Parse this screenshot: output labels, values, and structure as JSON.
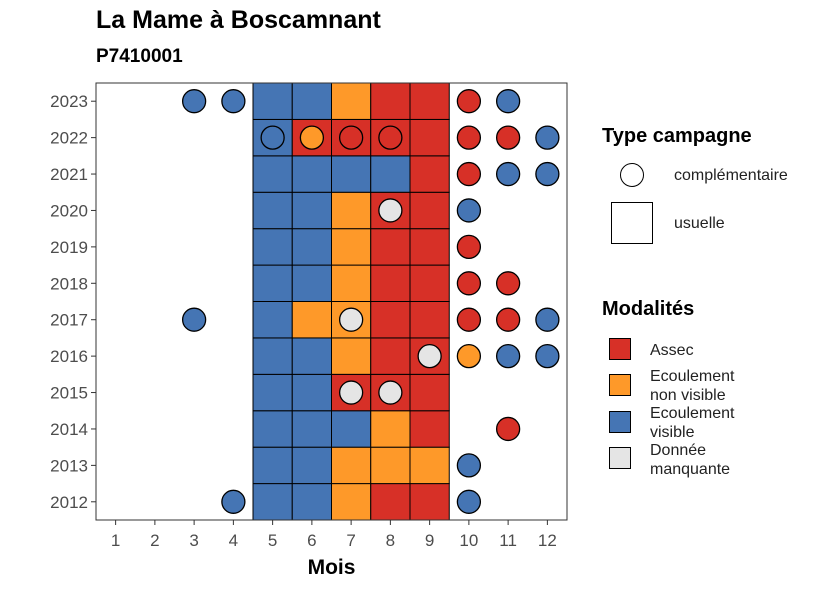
{
  "header": {
    "title": "La Mame à Boscamnant",
    "subtitle": "P7410001"
  },
  "chart_data": {
    "type": "heatmap",
    "xlabel": "Mois",
    "ylabel": "",
    "x_ticks": [
      "1",
      "2",
      "3",
      "4",
      "5",
      "6",
      "7",
      "8",
      "9",
      "10",
      "11",
      "12"
    ],
    "y_ticks": [
      "2012",
      "2013",
      "2014",
      "2015",
      "2016",
      "2017",
      "2018",
      "2019",
      "2020",
      "2021",
      "2022",
      "2023"
    ],
    "colors": {
      "Assec": "#d73027",
      "Ecoulement non visible": "#fe9929",
      "Ecoulement visible": "#4575b4",
      "Donnée manquante": "#e5e5e5"
    },
    "usuelle": [
      {
        "year": 2012,
        "months": [
          "Ecoulement visible",
          "Ecoulement visible",
          "Ecoulement non visible",
          "Assec",
          "Assec"
        ]
      },
      {
        "year": 2013,
        "months": [
          "Ecoulement visible",
          "Ecoulement visible",
          "Ecoulement non visible",
          "Ecoulement non visible",
          "Ecoulement non visible"
        ]
      },
      {
        "year": 2014,
        "months": [
          "Ecoulement visible",
          "Ecoulement visible",
          "Ecoulement visible",
          "Ecoulement non visible",
          "Assec"
        ]
      },
      {
        "year": 2015,
        "months": [
          "Ecoulement visible",
          "Ecoulement visible",
          "Assec",
          "Assec",
          "Assec"
        ]
      },
      {
        "year": 2016,
        "months": [
          "Ecoulement visible",
          "Ecoulement visible",
          "Ecoulement non visible",
          "Assec",
          "Assec"
        ]
      },
      {
        "year": 2017,
        "months": [
          "Ecoulement visible",
          "Ecoulement non visible",
          "Ecoulement non visible",
          "Assec",
          "Assec"
        ]
      },
      {
        "year": 2018,
        "months": [
          "Ecoulement visible",
          "Ecoulement visible",
          "Ecoulement non visible",
          "Assec",
          "Assec"
        ]
      },
      {
        "year": 2019,
        "months": [
          "Ecoulement visible",
          "Ecoulement visible",
          "Ecoulement non visible",
          "Assec",
          "Assec"
        ]
      },
      {
        "year": 2020,
        "months": [
          "Ecoulement visible",
          "Ecoulement visible",
          "Ecoulement non visible",
          "Assec",
          "Assec"
        ]
      },
      {
        "year": 2021,
        "months": [
          "Ecoulement visible",
          "Ecoulement visible",
          "Ecoulement visible",
          "Ecoulement visible",
          "Assec"
        ]
      },
      {
        "year": 2022,
        "months": [
          "Ecoulement visible",
          "Assec",
          "Assec",
          "Assec",
          "Assec"
        ]
      },
      {
        "year": 2023,
        "months": [
          "Ecoulement visible",
          "Ecoulement visible",
          "Ecoulement non visible",
          "Assec",
          "Assec"
        ]
      }
    ],
    "usuelle_month_start": 5,
    "complementaire": [
      {
        "year": 2023,
        "month": 3,
        "value": "Ecoulement visible"
      },
      {
        "year": 2023,
        "month": 4,
        "value": "Ecoulement visible"
      },
      {
        "year": 2023,
        "month": 10,
        "value": "Assec"
      },
      {
        "year": 2023,
        "month": 11,
        "value": "Ecoulement visible"
      },
      {
        "year": 2022,
        "month": 5,
        "value": "Ecoulement visible"
      },
      {
        "year": 2022,
        "month": 6,
        "value": "Ecoulement non visible"
      },
      {
        "year": 2022,
        "month": 7,
        "value": "Assec"
      },
      {
        "year": 2022,
        "month": 8,
        "value": "Assec"
      },
      {
        "year": 2022,
        "month": 10,
        "value": "Assec"
      },
      {
        "year": 2022,
        "month": 11,
        "value": "Assec"
      },
      {
        "year": 2022,
        "month": 12,
        "value": "Ecoulement visible"
      },
      {
        "year": 2021,
        "month": 10,
        "value": "Assec"
      },
      {
        "year": 2021,
        "month": 11,
        "value": "Ecoulement visible"
      },
      {
        "year": 2021,
        "month": 12,
        "value": "Ecoulement visible"
      },
      {
        "year": 2020,
        "month": 8,
        "value": "Donnée manquante"
      },
      {
        "year": 2020,
        "month": 10,
        "value": "Ecoulement visible"
      },
      {
        "year": 2019,
        "month": 10,
        "value": "Assec"
      },
      {
        "year": 2018,
        "month": 10,
        "value": "Assec"
      },
      {
        "year": 2018,
        "month": 11,
        "value": "Assec"
      },
      {
        "year": 2017,
        "month": 3,
        "value": "Ecoulement visible"
      },
      {
        "year": 2017,
        "month": 7,
        "value": "Donnée manquante"
      },
      {
        "year": 2017,
        "month": 10,
        "value": "Assec"
      },
      {
        "year": 2017,
        "month": 11,
        "value": "Assec"
      },
      {
        "year": 2017,
        "month": 12,
        "value": "Ecoulement visible"
      },
      {
        "year": 2016,
        "month": 9,
        "value": "Donnée manquante"
      },
      {
        "year": 2016,
        "month": 10,
        "value": "Ecoulement non visible"
      },
      {
        "year": 2016,
        "month": 11,
        "value": "Ecoulement visible"
      },
      {
        "year": 2016,
        "month": 12,
        "value": "Ecoulement visible"
      },
      {
        "year": 2015,
        "month": 7,
        "value": "Donnée manquante"
      },
      {
        "year": 2015,
        "month": 8,
        "value": "Donnée manquante"
      },
      {
        "year": 2014,
        "month": 11,
        "value": "Assec"
      },
      {
        "year": 2013,
        "month": 10,
        "value": "Ecoulement visible"
      },
      {
        "year": 2012,
        "month": 4,
        "value": "Ecoulement visible"
      },
      {
        "year": 2012,
        "month": 10,
        "value": "Ecoulement visible"
      }
    ],
    "legend": {
      "campaign_title": "Type campagne",
      "campaign_items": [
        "complémentaire",
        "usuelle"
      ],
      "modalites_title": "Modalités",
      "modalites_items": [
        {
          "label": "Assec",
          "color": "#d73027"
        },
        {
          "label": "Ecoulement non visible",
          "color": "#fe9929"
        },
        {
          "label": "Ecoulement visible",
          "color": "#4575b4"
        },
        {
          "label": "Donnée manquante",
          "color": "#e5e5e5"
        }
      ],
      "placement": "right"
    }
  }
}
